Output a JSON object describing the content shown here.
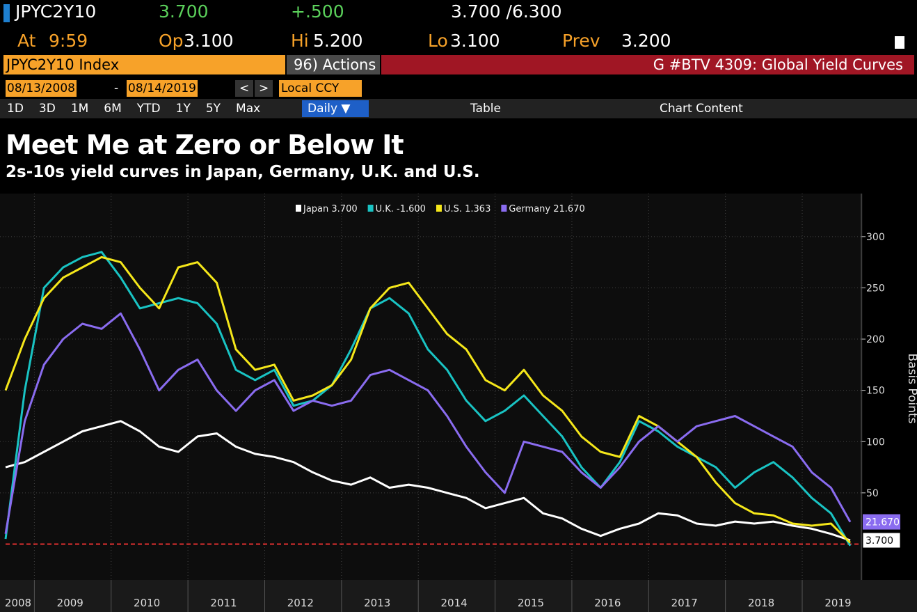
{
  "terminal": {
    "ticker": "JPYC2Y10",
    "last": "3.700",
    "change": "+.500",
    "bid_ask": "3.700 /6.300",
    "time_label": "At",
    "time": "9:59",
    "open_label": "Op",
    "open": "3.100",
    "high_label": "Hi",
    "high": "5.200",
    "low_label": "Lo",
    "low": "3.100",
    "prev_label": "Prev",
    "prev": "3.200"
  },
  "toolbar": {
    "security": "JPYC2Y10 Index",
    "actions": "96) Actions ▾",
    "page": "G #BTV 4309: Global Yield Curves",
    "start_date": "08/13/2008",
    "dash": "-",
    "end_date": "08/14/2019",
    "currency": "Local CCY",
    "periods": [
      "1D",
      "3D",
      "1M",
      "6M",
      "YTD",
      "1Y",
      "5Y",
      "Max"
    ],
    "frequency": "Daily ▼",
    "table": "Table",
    "chart_content": "Chart Content"
  },
  "chart_data": {
    "type": "line",
    "title": "Meet Me at Zero or Below It",
    "subtitle": "2s-10s yield curves in Japan, Germany, U.K. and U.S.",
    "y_label": "Basis Points",
    "categories": [
      "2008",
      null,
      null,
      "2009",
      null,
      null,
      null,
      "2010",
      null,
      null,
      null,
      "2011",
      null,
      null,
      null,
      "2012",
      null,
      null,
      null,
      "2013",
      null,
      null,
      null,
      "2014",
      null,
      null,
      null,
      "2015",
      null,
      null,
      null,
      "2016",
      null,
      null,
      null,
      "2017",
      null,
      null,
      null,
      "2018",
      null,
      null,
      null,
      "2019",
      null
    ],
    "series": [
      {
        "name": "Japan 3.700",
        "color": "#ffffff",
        "tag": "3.700",
        "values": [
          75,
          80,
          90,
          100,
          110,
          115,
          120,
          110,
          95,
          90,
          105,
          108,
          95,
          88,
          85,
          80,
          70,
          62,
          58,
          65,
          55,
          58,
          55,
          50,
          45,
          35,
          40,
          45,
          30,
          25,
          15,
          8,
          15,
          20,
          30,
          28,
          20,
          18,
          22,
          20,
          22,
          18,
          15,
          10,
          3.7
        ]
      },
      {
        "name": "U.K. -1.600",
        "color": "#19c3c3",
        "values": [
          5,
          150,
          250,
          270,
          280,
          285,
          260,
          230,
          235,
          240,
          235,
          215,
          170,
          160,
          170,
          135,
          140,
          155,
          190,
          230,
          240,
          225,
          190,
          170,
          140,
          120,
          130,
          145,
          125,
          105,
          75,
          55,
          80,
          120,
          110,
          95,
          85,
          75,
          55,
          70,
          80,
          65,
          45,
          30,
          -1.6
        ]
      },
      {
        "name": "U.S. 1.363",
        "color": "#f5e71a",
        "values": [
          150,
          200,
          240,
          260,
          270,
          280,
          275,
          250,
          230,
          270,
          275,
          255,
          190,
          170,
          175,
          140,
          145,
          155,
          180,
          230,
          250,
          255,
          230,
          205,
          190,
          160,
          150,
          170,
          145,
          130,
          105,
          90,
          85,
          125,
          115,
          100,
          85,
          60,
          40,
          30,
          28,
          20,
          18,
          20,
          1.363
        ]
      },
      {
        "name": "Germany 21.670",
        "color": "#8a6cf0",
        "tag": "21.670",
        "values": [
          10,
          120,
          175,
          200,
          215,
          210,
          225,
          190,
          150,
          170,
          180,
          150,
          130,
          150,
          160,
          130,
          140,
          135,
          140,
          165,
          170,
          160,
          150,
          125,
          95,
          70,
          50,
          100,
          95,
          90,
          70,
          55,
          75,
          100,
          115,
          100,
          115,
          120,
          125,
          115,
          105,
          95,
          70,
          55,
          21.67
        ]
      }
    ],
    "ylim": [
      -35,
      342
    ],
    "yticks": [
      50,
      100,
      150,
      200,
      250,
      300
    ],
    "grid": true,
    "axis_side": "right",
    "legend": "top",
    "reference_line": {
      "value": 0,
      "color": "#e03030"
    }
  }
}
